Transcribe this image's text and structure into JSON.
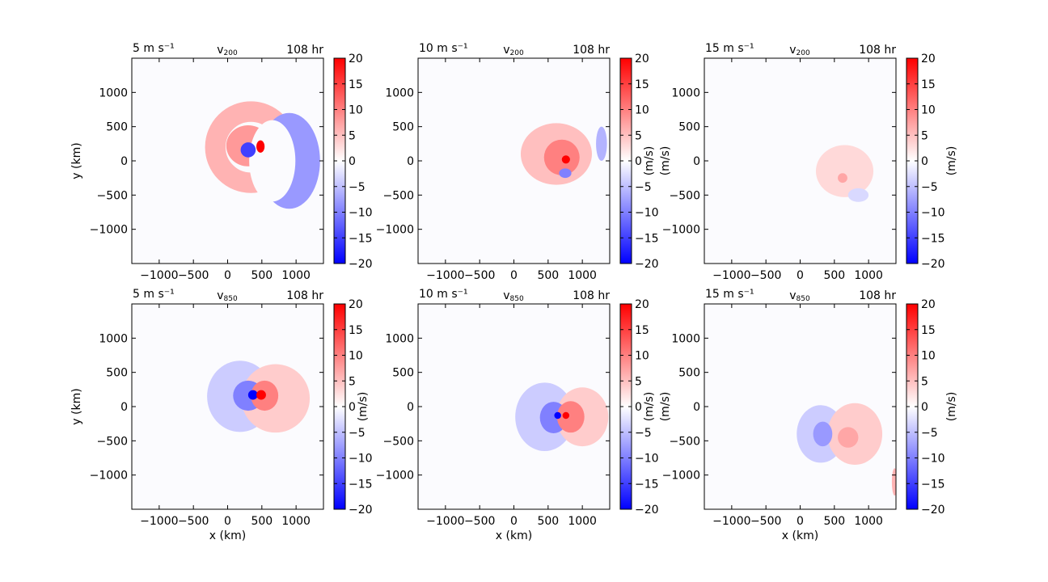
{
  "figure": {
    "colorbar": {
      "ticks": [
        20,
        15,
        10,
        5,
        0,
        -5,
        -10,
        -15,
        -20
      ],
      "range": [
        -20,
        20
      ],
      "label": "(m/s)",
      "colors": {
        "negative": "#0000ff",
        "zero": "#ffffff",
        "positive": "#ff0000"
      }
    }
  },
  "chart_data": [
    {
      "type": "heatmap",
      "shear_label": "5 m s⁻¹",
      "var_base": "v",
      "var_sub": "200",
      "time_label": "108 hr",
      "xlabel": "",
      "ylabel": "y (km)",
      "colorbar_label": "",
      "xticks": [
        "−1000",
        "−500",
        "0",
        "500",
        "1000"
      ],
      "yticks": [
        "1000",
        "500",
        "0",
        "−500",
        "−1000"
      ],
      "xlim": [
        -1400,
        1400
      ],
      "ylim": [
        -1500,
        1500
      ],
      "vmin": -20,
      "vmax": 20,
      "features": [
        {
          "shape": "ring",
          "cx": 340,
          "cy": 200,
          "r": 520,
          "width": 300,
          "value": 6
        },
        {
          "shape": "blob",
          "cx": 300,
          "cy": 220,
          "rx": 320,
          "ry": 300,
          "value": 8
        },
        {
          "shape": "crescent",
          "cx": 900,
          "cy": 0,
          "rx": 450,
          "ry": 700,
          "value": -8
        },
        {
          "shape": "blob",
          "cx": 300,
          "cy": 160,
          "rx": 110,
          "ry": 110,
          "value": -15
        },
        {
          "shape": "blob",
          "cx": 480,
          "cy": 210,
          "rx": 60,
          "ry": 90,
          "value": 20
        }
      ]
    },
    {
      "type": "heatmap",
      "shear_label": "10 m s⁻¹",
      "var_base": "v",
      "var_sub": "200",
      "time_label": "108 hr",
      "xlabel": "",
      "ylabel": "",
      "colorbar_label": "(m/s)",
      "xticks": [
        "−1000",
        "−500",
        "0",
        "500",
        "1000"
      ],
      "yticks": [
        "1000",
        "500",
        "0",
        "−500",
        "−1000"
      ],
      "xlim": [
        -1400,
        1400
      ],
      "ylim": [
        -1500,
        1500
      ],
      "vmin": -20,
      "vmax": 20,
      "features": [
        {
          "shape": "blob",
          "cx": 620,
          "cy": 100,
          "rx": 520,
          "ry": 450,
          "value": 5
        },
        {
          "shape": "blob",
          "cx": 700,
          "cy": 50,
          "rx": 260,
          "ry": 260,
          "value": 10
        },
        {
          "shape": "blob",
          "cx": 1280,
          "cy": 250,
          "rx": 80,
          "ry": 250,
          "value": -6
        },
        {
          "shape": "blob",
          "cx": 750,
          "cy": -180,
          "rx": 90,
          "ry": 70,
          "value": -10
        },
        {
          "shape": "blob",
          "cx": 760,
          "cy": 20,
          "rx": 60,
          "ry": 60,
          "value": 20
        }
      ]
    },
    {
      "type": "heatmap",
      "shear_label": "15 m s⁻¹",
      "var_base": "v",
      "var_sub": "200",
      "time_label": "108 hr",
      "xlabel": "",
      "ylabel": "(m/s)",
      "colorbar_label": "(m/s)",
      "xticks": [
        "−1000",
        "−500",
        "0",
        "500",
        "1000"
      ],
      "yticks": [
        "1000",
        "500",
        "0",
        "−500",
        "−1000"
      ],
      "xlim": [
        -1400,
        1400
      ],
      "ylim": [
        -1500,
        1500
      ],
      "vmin": -20,
      "vmax": 20,
      "features": [
        {
          "shape": "blob",
          "cx": 650,
          "cy": -150,
          "rx": 420,
          "ry": 380,
          "value": 3
        },
        {
          "shape": "blob",
          "cx": 620,
          "cy": -250,
          "rx": 70,
          "ry": 70,
          "value": 7
        },
        {
          "shape": "blob",
          "cx": 850,
          "cy": -500,
          "rx": 150,
          "ry": 100,
          "value": -3
        }
      ]
    },
    {
      "type": "heatmap",
      "shear_label": "5 m s⁻¹",
      "var_base": "v",
      "var_sub": "850",
      "time_label": "108 hr",
      "xlabel": "x (km)",
      "ylabel": "y (km)",
      "colorbar_label": "",
      "xticks": [
        "−1000",
        "−500",
        "0",
        "500",
        "1000"
      ],
      "yticks": [
        "1000",
        "500",
        "0",
        "−500",
        "−1000"
      ],
      "xlim": [
        -1400,
        1400
      ],
      "ylim": [
        -1500,
        1500
      ],
      "vmin": -20,
      "vmax": 20,
      "features": [
        {
          "shape": "blob",
          "cx": 180,
          "cy": 150,
          "rx": 480,
          "ry": 520,
          "value": -4
        },
        {
          "shape": "blob",
          "cx": 700,
          "cy": 120,
          "rx": 500,
          "ry": 500,
          "value": 4
        },
        {
          "shape": "blob",
          "cx": 300,
          "cy": 160,
          "rx": 220,
          "ry": 220,
          "value": -10
        },
        {
          "shape": "blob",
          "cx": 540,
          "cy": 160,
          "rx": 200,
          "ry": 220,
          "value": 10
        },
        {
          "shape": "blob",
          "cx": 370,
          "cy": 170,
          "rx": 70,
          "ry": 70,
          "value": -20
        },
        {
          "shape": "blob",
          "cx": 490,
          "cy": 170,
          "rx": 70,
          "ry": 70,
          "value": 20
        }
      ]
    },
    {
      "type": "heatmap",
      "shear_label": "10 m s⁻¹",
      "var_base": "v",
      "var_sub": "850",
      "time_label": "108 hr",
      "xlabel": "x (km)",
      "ylabel": "(m/s)",
      "colorbar_label": "(m/s)",
      "xticks": [
        "−1000",
        "−500",
        "0",
        "500",
        "1000"
      ],
      "yticks": [
        "1000",
        "500",
        "0",
        "−500",
        "−1000"
      ],
      "xlim": [
        -1400,
        1400
      ],
      "ylim": [
        -1500,
        1500
      ],
      "vmin": -20,
      "vmax": 20,
      "features": [
        {
          "shape": "blob",
          "cx": 450,
          "cy": -150,
          "rx": 430,
          "ry": 500,
          "value": -4
        },
        {
          "shape": "blob",
          "cx": 1000,
          "cy": -150,
          "rx": 380,
          "ry": 430,
          "value": 4
        },
        {
          "shape": "blob",
          "cx": 580,
          "cy": -160,
          "rx": 200,
          "ry": 230,
          "value": -10
        },
        {
          "shape": "blob",
          "cx": 830,
          "cy": -150,
          "rx": 200,
          "ry": 230,
          "value": 10
        },
        {
          "shape": "blob",
          "cx": 640,
          "cy": -130,
          "rx": 50,
          "ry": 50,
          "value": -20
        },
        {
          "shape": "blob",
          "cx": 760,
          "cy": -130,
          "rx": 50,
          "ry": 50,
          "value": 20
        }
      ]
    },
    {
      "type": "heatmap",
      "shear_label": "15 m s⁻¹",
      "var_base": "v",
      "var_sub": "850",
      "time_label": "108 hr",
      "xlabel": "x (km)",
      "ylabel": "(m/s)",
      "colorbar_label": "(m/s)",
      "xticks": [
        "−1000",
        "−500",
        "0",
        "500",
        "1000"
      ],
      "yticks": [
        "1000",
        "500",
        "0",
        "−500",
        "−1000"
      ],
      "xlim": [
        -1400,
        1400
      ],
      "ylim": [
        -1500,
        1500
      ],
      "vmin": -20,
      "vmax": 20,
      "features": [
        {
          "shape": "blob",
          "cx": 300,
          "cy": -400,
          "rx": 350,
          "ry": 420,
          "value": -4
        },
        {
          "shape": "blob",
          "cx": 800,
          "cy": -400,
          "rx": 400,
          "ry": 450,
          "value": 4
        },
        {
          "shape": "blob",
          "cx": 330,
          "cy": -400,
          "rx": 140,
          "ry": 180,
          "value": -8
        },
        {
          "shape": "blob",
          "cx": 700,
          "cy": -450,
          "rx": 150,
          "ry": 150,
          "value": 7
        },
        {
          "shape": "blob",
          "cx": 1380,
          "cy": -1100,
          "rx": 40,
          "ry": 200,
          "value": 6
        }
      ]
    }
  ]
}
